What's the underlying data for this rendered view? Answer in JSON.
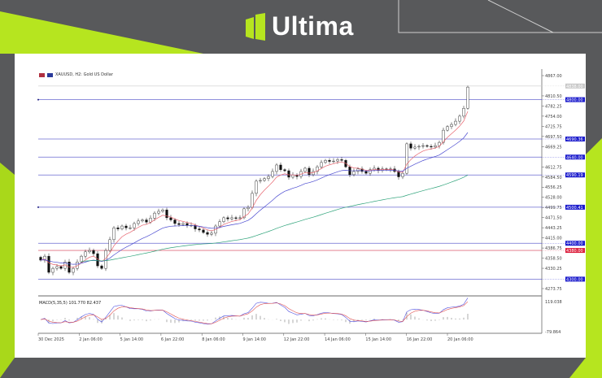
{
  "brand": {
    "name": "Ultima",
    "accent": "#b6e51f",
    "background": "#58595b"
  },
  "chart_data": {
    "type": "candlestick",
    "title": "XAUUSD, H2:  Gold US Dollar",
    "symbol": "XAUUSD",
    "timeframe": "H2",
    "ylim": [
      4273.75,
      4867.0
    ],
    "y_ticks": [
      4867.0,
      4810.5,
      4782.25,
      4754.0,
      4725.75,
      4697.5,
      4669.25,
      4612.75,
      4584.5,
      4556.25,
      4528.0,
      4499.75,
      4471.5,
      4443.25,
      4415.0,
      4386.75,
      4358.5,
      4330.25,
      4273.75
    ],
    "x_ticks": [
      "30 Dec 2025",
      "2 Jan 06:00",
      "5 Jan 14:00",
      "6 Jan 22:00",
      "8 Jan 06:00",
      "9 Jan 14:00",
      "12 Jan 22:00",
      "14 Jan 06:00",
      "15 Jan 14:00",
      "16 Jan 22:00",
      "20 Jan 06:00"
    ],
    "current_price": {
      "value": 4838.0,
      "label": "4838.00",
      "color": "#c8c8c8"
    },
    "levels": [
      {
        "value": 4800.0,
        "label": "4800.00",
        "color": "#1a1acc"
      },
      {
        "value": 4690.36,
        "label": "4690.36",
        "color": "#1a1acc"
      },
      {
        "value": 4640.0,
        "label": "4640.00",
        "color": "#1a1acc"
      },
      {
        "value": 4590.19,
        "label": "4590.19",
        "color": "#1a1acc"
      },
      {
        "value": 4500.41,
        "label": "4500.41",
        "color": "#1a1acc"
      },
      {
        "value": 4400.0,
        "label": "4400.00",
        "color": "#1a1acc"
      },
      {
        "value": 4380.0,
        "label": "4380.00",
        "color": "#dc1e3c"
      },
      {
        "value": 4300.0,
        "label": "4300.00",
        "color": "#1a1acc"
      }
    ],
    "closes": [
      4353,
      4364,
      4319,
      4330,
      4335,
      4330,
      4348,
      4319,
      4330,
      4348,
      4364,
      4376,
      4380,
      4371,
      4337,
      4330,
      4380,
      4410,
      4443,
      4440,
      4448,
      4443,
      4443,
      4455,
      4462,
      4465,
      4459,
      4470,
      4484,
      4489,
      4493,
      4471,
      4465,
      4455,
      4452,
      4455,
      4450,
      4450,
      4440,
      4437,
      4430,
      4425,
      4428,
      4448,
      4460,
      4471,
      4468,
      4471,
      4470,
      4471,
      4496,
      4500,
      4539,
      4573,
      4575,
      4580,
      4586,
      4600,
      4618,
      4605,
      4602,
      4584,
      4590,
      4586,
      4600,
      4609,
      4591,
      4600,
      4613,
      4625,
      4631,
      4628,
      4629,
      4633,
      4631,
      4613,
      4591,
      4600,
      4607,
      4600,
      4595,
      4605,
      4609,
      4603,
      4607,
      4605,
      4607,
      4600,
      4585,
      4595,
      4677,
      4665,
      4668,
      4670,
      4672,
      4670,
      4668,
      4672,
      4681,
      4715,
      4725,
      4731,
      4740,
      4754,
      4776,
      4835
    ],
    "ma_colors": [
      "#e8646e",
      "#4a4ad0",
      "#2ea37a"
    ],
    "macd": {
      "label": "MACD(5,35,5) 101.770 82.437",
      "ylim": [
        -79.864,
        119.038
      ],
      "y_ticks": [
        "119.038",
        "-79.864"
      ],
      "line_colors": [
        "#5050e0",
        "#e05050"
      ]
    }
  }
}
